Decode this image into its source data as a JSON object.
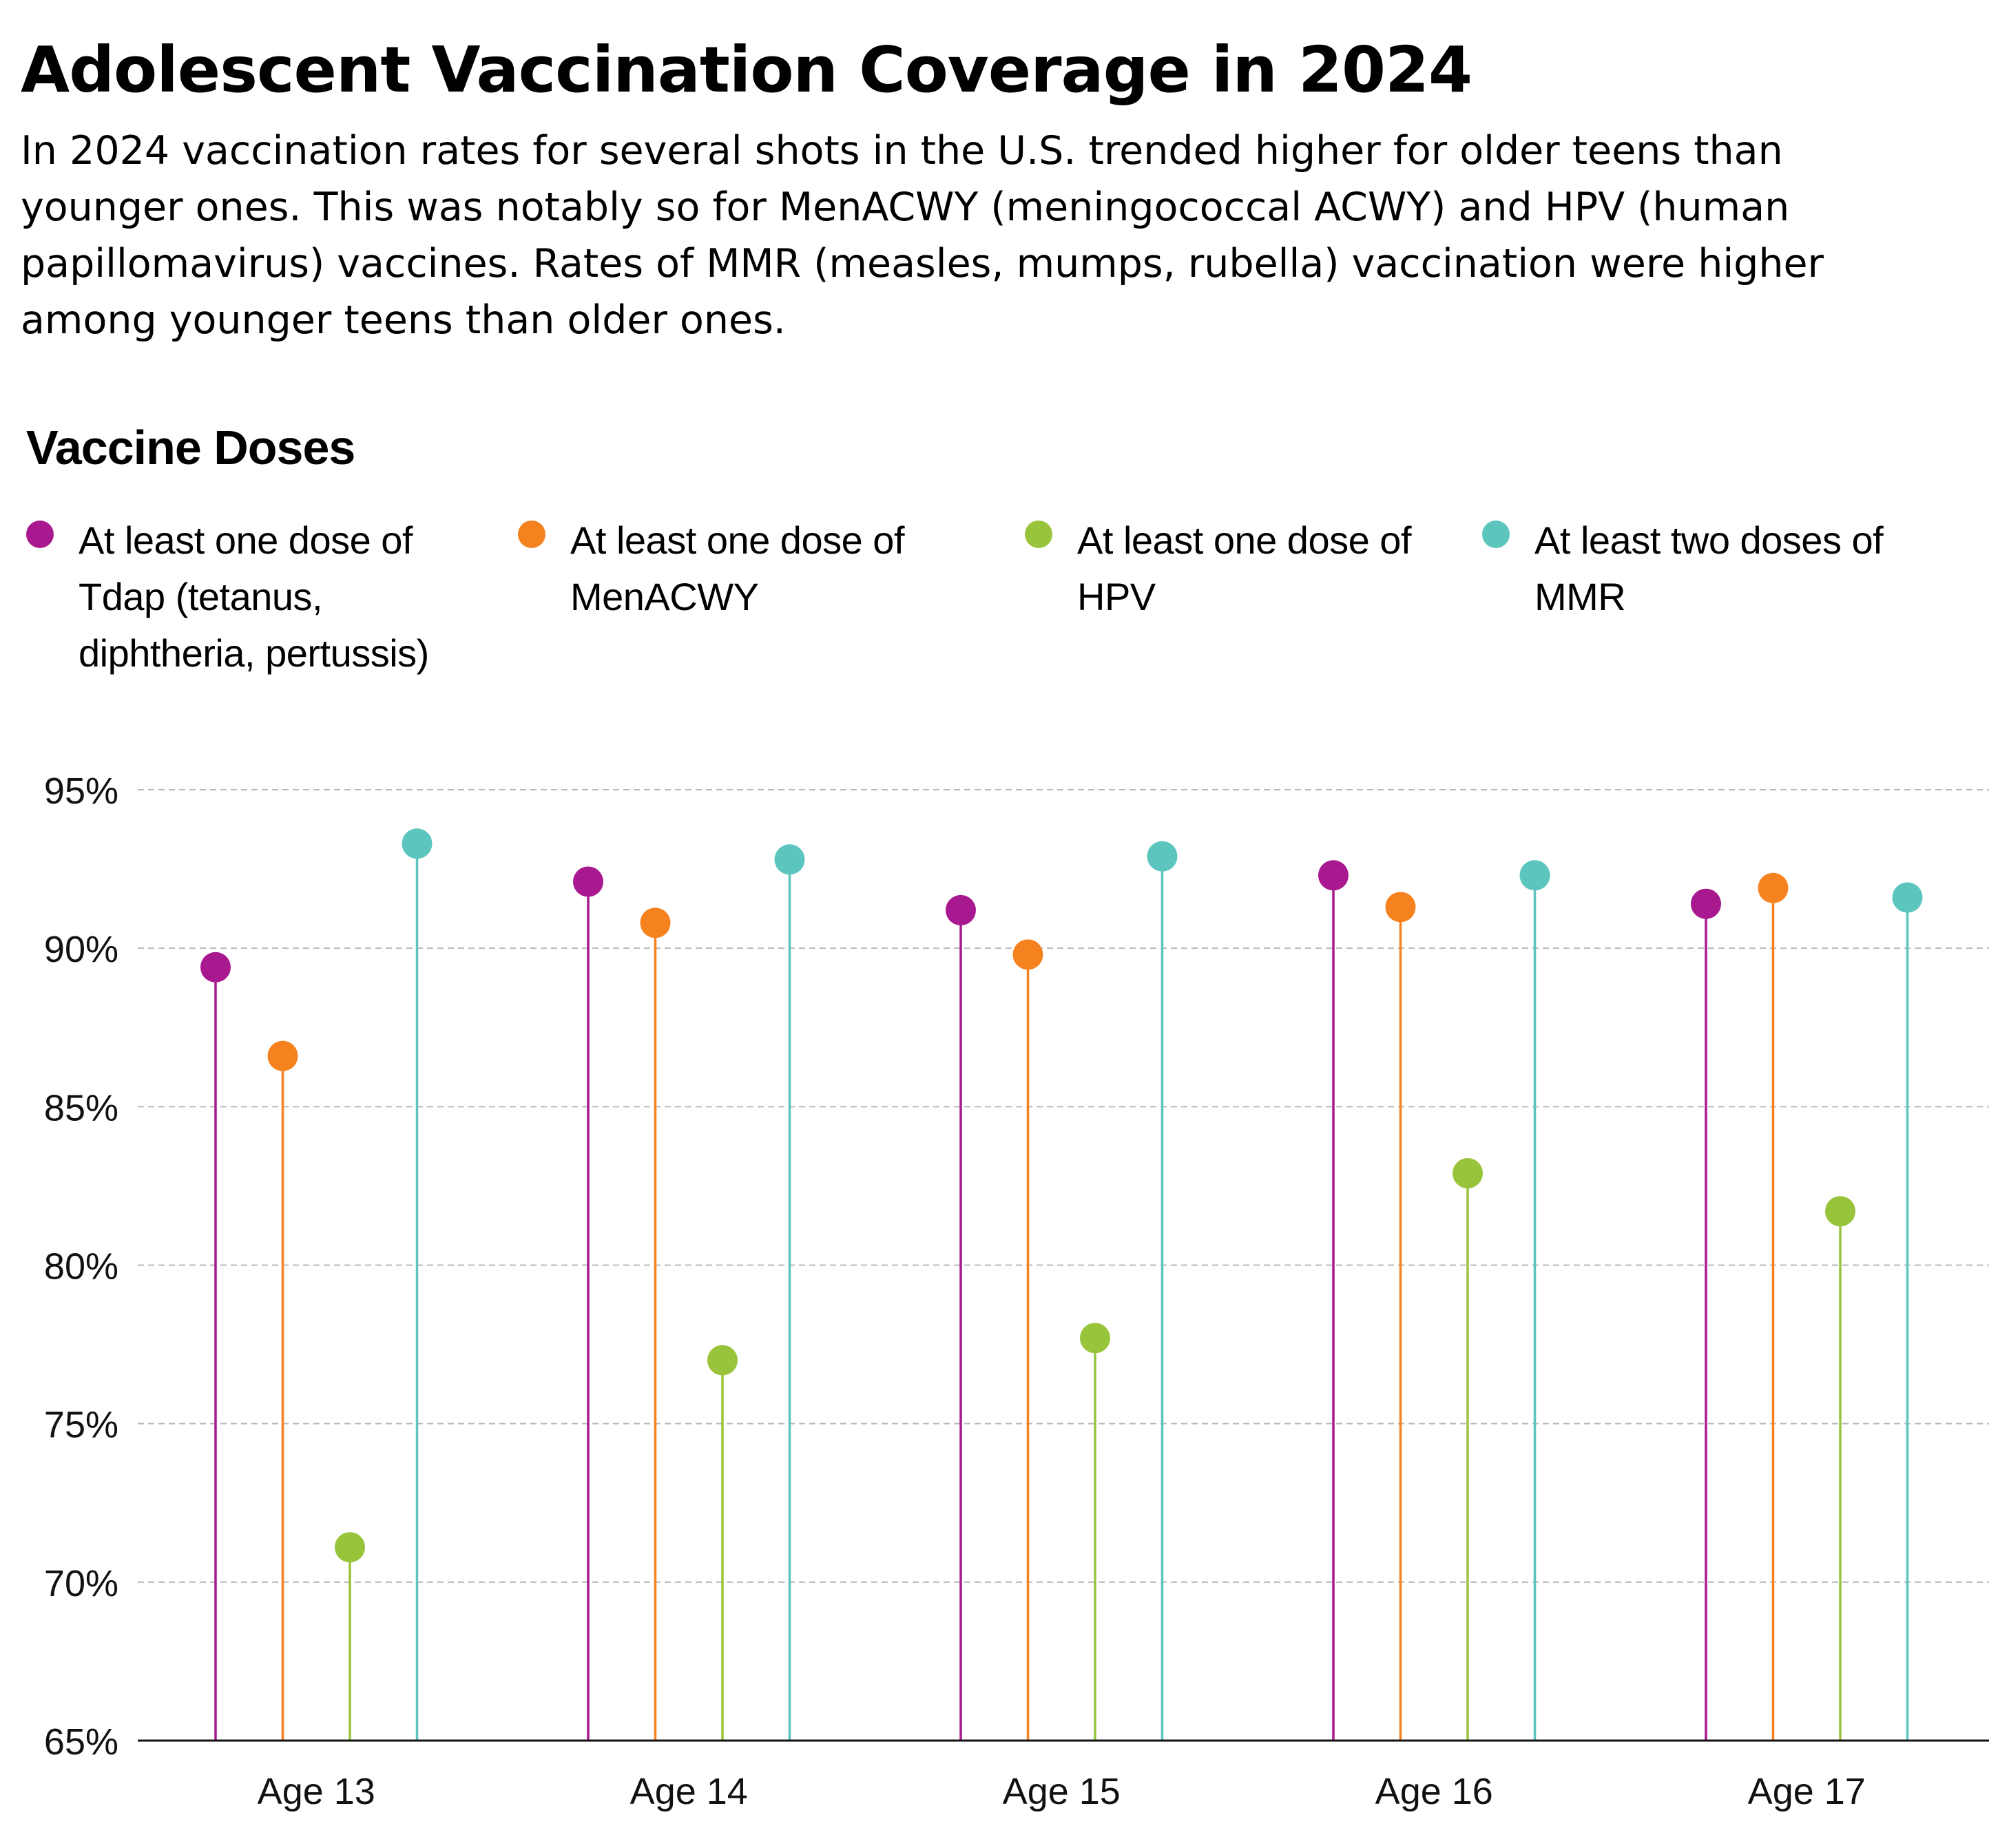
{
  "header": {
    "title": "Adolescent Vaccination Coverage in 2024",
    "subtitle": "In 2024 vaccination rates for several shots in the U.S. trended higher for older teens than younger ones. This was notably so for MenACWY (meningococcal ACWY) and HPV (human papillomavirus) vaccines. Rates of MMR (measles, mumps, rubella) vaccination were higher among younger teens than older ones."
  },
  "legend": {
    "title": "Vaccine Doses",
    "items": [
      {
        "label": "At least one dose of Tdap (tetanus, diphtheria, pertussis)",
        "color": "#a8188f"
      },
      {
        "label": "At least one dose of MenACWY",
        "color": "#f5821f"
      },
      {
        "label": "At least one dose of HPV",
        "color": "#98c43c"
      },
      {
        "label": "At least two doses of MMR",
        "color": "#5bc5be"
      }
    ]
  },
  "chart_data": {
    "type": "scatter",
    "categories": [
      "Age 13",
      "Age 14",
      "Age 15",
      "Age 16",
      "Age 17"
    ],
    "series": [
      {
        "name": "At least one dose of Tdap (tetanus, diphtheria, pertussis)",
        "color": "#a8188f",
        "values": [
          89.4,
          92.1,
          91.2,
          92.3,
          91.4
        ]
      },
      {
        "name": "At least one dose of MenACWY",
        "color": "#f5821f",
        "values": [
          86.6,
          90.8,
          89.8,
          91.3,
          91.9
        ]
      },
      {
        "name": "At least one dose of HPV",
        "color": "#98c43c",
        "values": [
          71.1,
          77.0,
          77.7,
          82.9,
          81.7
        ]
      },
      {
        "name": "At least two doses of MMR",
        "color": "#5bc5be",
        "values": [
          93.3,
          92.8,
          92.9,
          92.3,
          91.6
        ]
      }
    ],
    "yticks": [
      {
        "value": 95,
        "label": "95%"
      },
      {
        "value": 90,
        "label": "90%"
      },
      {
        "value": 85,
        "label": "85%"
      },
      {
        "value": 80,
        "label": "80%"
      },
      {
        "value": 75,
        "label": "75%"
      },
      {
        "value": 70,
        "label": "70%"
      },
      {
        "value": 65,
        "label": "65%"
      }
    ],
    "ylim": [
      65,
      95
    ],
    "grid": true,
    "legend_position": "top"
  }
}
